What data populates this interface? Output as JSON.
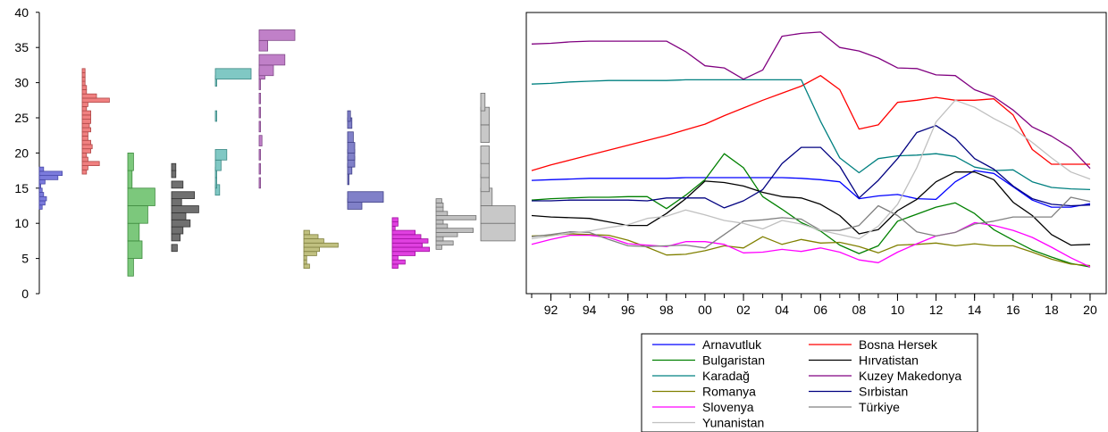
{
  "histograms": {
    "type": "bar",
    "y_ticks": [
      0,
      5,
      10,
      15,
      20,
      25,
      30,
      35,
      40
    ],
    "ylim": [
      0,
      40
    ],
    "bin_width": 0.6,
    "series": [
      {
        "name": "Arnavutluk",
        "color": "#7b7bdc",
        "stroke": "#4848a8",
        "bins": [
          [
            12.0,
            2
          ],
          [
            12.6,
            4
          ],
          [
            13.2,
            5
          ],
          [
            13.8,
            3
          ],
          [
            14.4,
            2
          ],
          [
            15.0,
            1
          ],
          [
            15.6,
            4
          ],
          [
            16.2,
            13
          ],
          [
            16.8,
            16
          ],
          [
            17.4,
            3
          ]
        ]
      },
      {
        "name": "Bosna Hersek",
        "color": "#f08080",
        "stroke": "#b04848",
        "bins": [
          [
            17.0,
            3
          ],
          [
            17.6,
            4
          ],
          [
            18.2,
            12
          ],
          [
            18.8,
            4
          ],
          [
            19.4,
            3
          ],
          [
            20.0,
            6
          ],
          [
            20.6,
            7
          ],
          [
            21.2,
            6
          ],
          [
            21.8,
            4
          ],
          [
            22.4,
            4
          ],
          [
            23.0,
            6
          ],
          [
            23.6,
            5
          ],
          [
            24.2,
            6
          ],
          [
            24.8,
            6
          ],
          [
            25.4,
            6
          ],
          [
            26.0,
            3
          ],
          [
            26.6,
            4
          ],
          [
            27.2,
            19
          ],
          [
            27.8,
            10
          ],
          [
            28.4,
            3
          ],
          [
            29.0,
            3
          ],
          [
            29.6,
            2
          ],
          [
            30.2,
            2
          ],
          [
            30.8,
            2
          ],
          [
            31.4,
            2
          ]
        ]
      },
      {
        "name": "Bulgaristan",
        "color": "#7cc87c",
        "stroke": "#3e8a3e",
        "bins": [
          [
            2.5,
            4
          ],
          [
            5.0,
            10
          ],
          [
            7.5,
            8
          ],
          [
            10.0,
            14
          ],
          [
            12.5,
            19
          ],
          [
            15.0,
            3
          ],
          [
            17.5,
            4
          ]
        ]
      },
      {
        "name": "Hırvatistan",
        "color": "#707070",
        "stroke": "#333333",
        "bins": [
          [
            6.0,
            4
          ],
          [
            7.5,
            6
          ],
          [
            8.5,
            8
          ],
          [
            9.5,
            13
          ],
          [
            10.5,
            10
          ],
          [
            11.5,
            19
          ],
          [
            12.5,
            7
          ],
          [
            13.5,
            16
          ],
          [
            15.0,
            8
          ],
          [
            16.5,
            3
          ],
          [
            17.5,
            3
          ]
        ]
      },
      {
        "name": "Karadağ",
        "color": "#80c8c4",
        "stroke": "#3c8884",
        "bins": [
          [
            14.0,
            3
          ],
          [
            15.0,
            1
          ],
          [
            16.5,
            1
          ],
          [
            17.5,
            4
          ],
          [
            19.0,
            8
          ],
          [
            24.5,
            1
          ],
          [
            29.5,
            1
          ],
          [
            30.5,
            25
          ]
        ]
      },
      {
        "name": "Kuzey Makedonya",
        "color": "#c080c8",
        "stroke": "#804888",
        "bins": [
          [
            15.0,
            1
          ],
          [
            17.0,
            1
          ],
          [
            19.0,
            1
          ],
          [
            21.0,
            2
          ],
          [
            23.0,
            1
          ],
          [
            25.0,
            1
          ],
          [
            27.0,
            1
          ],
          [
            29.0,
            1
          ],
          [
            30.5,
            4
          ],
          [
            31.0,
            10
          ],
          [
            32.5,
            18
          ],
          [
            34.5,
            6
          ],
          [
            36.0,
            25
          ]
        ]
      },
      {
        "name": "Romanya",
        "color": "#c0c080",
        "stroke": "#808040",
        "bins": [
          [
            3.6,
            4
          ],
          [
            4.2,
            2
          ],
          [
            4.8,
            2
          ],
          [
            5.4,
            9
          ],
          [
            6.0,
            11
          ],
          [
            6.6,
            24
          ],
          [
            7.2,
            14
          ],
          [
            7.8,
            10
          ],
          [
            8.4,
            4
          ]
        ]
      },
      {
        "name": "Sırbistan",
        "color": "#8080c8",
        "stroke": "#404088",
        "bins": [
          [
            12.0,
            10
          ],
          [
            13.0,
            25
          ],
          [
            15.5,
            1
          ],
          [
            17.0,
            3
          ],
          [
            18.0,
            5
          ],
          [
            19.0,
            5
          ],
          [
            20.0,
            5
          ],
          [
            21.5,
            4
          ],
          [
            23.5,
            3
          ],
          [
            24.5,
            2
          ]
        ]
      },
      {
        "name": "Slovenya",
        "color": "#e040e0",
        "stroke": "#a010a0",
        "bins": [
          [
            3.6,
            4
          ],
          [
            4.2,
            9
          ],
          [
            4.8,
            4
          ],
          [
            5.4,
            16
          ],
          [
            6.0,
            26
          ],
          [
            6.6,
            21
          ],
          [
            7.2,
            25
          ],
          [
            7.8,
            20
          ],
          [
            8.4,
            16
          ],
          [
            9.0,
            2
          ],
          [
            9.6,
            4
          ],
          [
            10.2,
            4
          ]
        ]
      },
      {
        "name": "Türkiye",
        "color": "#c0c0c0",
        "stroke": "#707070",
        "bins": [
          [
            6.3,
            4
          ],
          [
            6.9,
            12
          ],
          [
            7.5,
            5
          ],
          [
            8.1,
            15
          ],
          [
            8.7,
            26
          ],
          [
            9.3,
            8
          ],
          [
            9.9,
            5
          ],
          [
            10.5,
            28
          ],
          [
            11.1,
            8
          ],
          [
            11.7,
            5
          ],
          [
            12.3,
            5
          ],
          [
            12.9,
            4
          ]
        ]
      },
      {
        "name": "Yunanistan",
        "color": "#c8c8c8",
        "stroke": "#707070",
        "bins": [
          [
            7.5,
            24
          ],
          [
            10.0,
            24
          ],
          [
            12.5,
            8
          ],
          [
            14.5,
            6
          ],
          [
            16.5,
            6
          ],
          [
            18.5,
            6
          ],
          [
            21.5,
            6
          ],
          [
            24.0,
            6
          ],
          [
            26.0,
            3
          ]
        ]
      }
    ]
  },
  "chart_data": {
    "type": "line",
    "x_ticks": [
      "92",
      "94",
      "96",
      "98",
      "00",
      "02",
      "04",
      "06",
      "08",
      "10",
      "12",
      "14",
      "16",
      "18",
      "20"
    ],
    "x": [
      1991,
      1992,
      1993,
      1994,
      1995,
      1996,
      1997,
      1998,
      1999,
      2000,
      2001,
      2002,
      2003,
      2004,
      2005,
      2006,
      2007,
      2008,
      2009,
      2010,
      2011,
      2012,
      2013,
      2014,
      2015,
      2016,
      2017,
      2018,
      2019,
      2020
    ],
    "ylim": [
      0,
      40
    ],
    "series": [
      {
        "name": "Arnavutluk",
        "color": "#0000ff",
        "values": [
          16.1,
          16.2,
          16.3,
          16.4,
          16.4,
          16.4,
          16.4,
          16.4,
          16.5,
          16.5,
          16.5,
          16.5,
          16.5,
          16.5,
          16.4,
          16.2,
          15.9,
          13.5,
          13.9,
          14.1,
          13.5,
          13.4,
          15.9,
          17.5,
          17.1,
          15.2,
          13.3,
          12.3,
          12.3,
          12.8
        ]
      },
      {
        "name": "Bosna Hersek",
        "color": "#ff0000",
        "values": [
          17.5,
          18.3,
          19.0,
          19.7,
          20.4,
          21.1,
          21.8,
          22.5,
          23.3,
          24.1,
          25.3,
          26.4,
          27.5,
          28.5,
          29.5,
          31.0,
          29.0,
          23.4,
          24.0,
          27.2,
          27.5,
          27.9,
          27.5,
          27.5,
          27.7,
          25.4,
          20.5,
          18.4,
          18.4,
          18.4
        ]
      },
      {
        "name": "Bulgaristan",
        "color": "#008000",
        "values": [
          13.3,
          13.5,
          13.6,
          13.7,
          13.7,
          13.8,
          13.8,
          12.1,
          14.0,
          16.2,
          19.9,
          17.9,
          13.8,
          12.0,
          10.1,
          8.9,
          6.9,
          5.7,
          6.8,
          10.3,
          11.3,
          12.3,
          12.9,
          11.4,
          9.1,
          7.6,
          6.2,
          5.2,
          4.3,
          3.8
        ]
      },
      {
        "name": "Hırvatistan",
        "color": "#000000",
        "values": [
          11.1,
          10.9,
          10.8,
          10.7,
          10.2,
          9.7,
          9.7,
          11.4,
          13.5,
          16.0,
          15.8,
          15.3,
          14.4,
          13.8,
          13.6,
          12.7,
          11.1,
          8.5,
          9.1,
          11.8,
          13.4,
          15.9,
          17.3,
          17.3,
          16.2,
          13.0,
          11.1,
          8.4,
          6.9,
          7.0
        ]
      },
      {
        "name": "Karadağ",
        "color": "#008080",
        "values": [
          29.8,
          29.9,
          30.1,
          30.2,
          30.3,
          30.3,
          30.3,
          30.3,
          30.4,
          30.4,
          30.4,
          30.4,
          30.4,
          30.4,
          30.4,
          24.5,
          19.3,
          17.2,
          19.2,
          19.6,
          19.7,
          19.9,
          19.5,
          18.0,
          17.5,
          17.6,
          15.9,
          15.1,
          14.9,
          14.8
        ]
      },
      {
        "name": "Kuzey Makedonya",
        "color": "#800080",
        "values": [
          35.5,
          35.6,
          35.8,
          35.9,
          35.9,
          35.9,
          35.9,
          35.9,
          34.4,
          32.4,
          32.1,
          30.5,
          31.8,
          36.6,
          37.0,
          37.2,
          35.0,
          34.5,
          33.5,
          32.1,
          32.0,
          31.1,
          31.0,
          29.0,
          28.0,
          26.1,
          23.7,
          22.4,
          20.7,
          17.8
        ]
      },
      {
        "name": "Romanya",
        "color": "#808000",
        "values": [
          8.2,
          8.3,
          8.5,
          8.4,
          8.3,
          7.6,
          6.6,
          5.5,
          5.6,
          6.1,
          6.8,
          6.5,
          8.1,
          7.0,
          7.7,
          7.2,
          7.3,
          6.7,
          5.8,
          6.9,
          7.0,
          7.2,
          6.8,
          7.1,
          6.8,
          6.8,
          5.9,
          4.9,
          4.2,
          4.0
        ]
      },
      {
        "name": "Sırbistan",
        "color": "#000080",
        "values": [
          13.2,
          13.2,
          13.3,
          13.3,
          13.3,
          13.3,
          13.2,
          13.6,
          13.6,
          13.6,
          12.2,
          13.2,
          14.8,
          18.5,
          20.8,
          20.8,
          18.1,
          13.6,
          16.1,
          19.2,
          22.9,
          23.9,
          22.1,
          19.2,
          17.7,
          15.3,
          13.5,
          12.7,
          12.5,
          12.6
        ]
      },
      {
        "name": "Slovenya",
        "color": "#ff00ff",
        "values": [
          7.0,
          7.7,
          8.3,
          8.3,
          8.0,
          7.1,
          6.9,
          6.7,
          7.4,
          7.4,
          7.0,
          5.8,
          5.9,
          6.3,
          6.0,
          6.5,
          5.9,
          4.8,
          4.4,
          5.9,
          7.1,
          8.2,
          8.7,
          10.1,
          9.7,
          9.0,
          8.0,
          6.6,
          5.1,
          3.8
        ]
      },
      {
        "name": "Türkiye",
        "color": "#808080",
        "values": [
          8.1,
          8.4,
          8.8,
          8.7,
          7.7,
          6.8,
          6.7,
          6.8,
          6.9,
          6.5,
          8.4,
          10.3,
          10.5,
          10.8,
          10.6,
          9.0,
          9.0,
          9.7,
          12.5,
          11.1,
          8.8,
          8.2,
          8.7,
          9.9,
          10.3,
          10.9,
          10.9,
          10.9,
          13.7,
          13.1
        ]
      },
      {
        "name": "Yunanistan",
        "color": "#c0c0c0",
        "values": [
          7.8,
          8.2,
          8.6,
          8.9,
          9.4,
          9.8,
          10.7,
          11.0,
          11.9,
          11.2,
          10.4,
          10.0,
          9.2,
          10.4,
          9.9,
          9.0,
          8.4,
          7.8,
          9.6,
          12.7,
          17.9,
          24.4,
          27.5,
          26.5,
          24.9,
          23.5,
          21.5,
          19.3,
          17.3,
          16.3
        ]
      }
    ]
  }
}
